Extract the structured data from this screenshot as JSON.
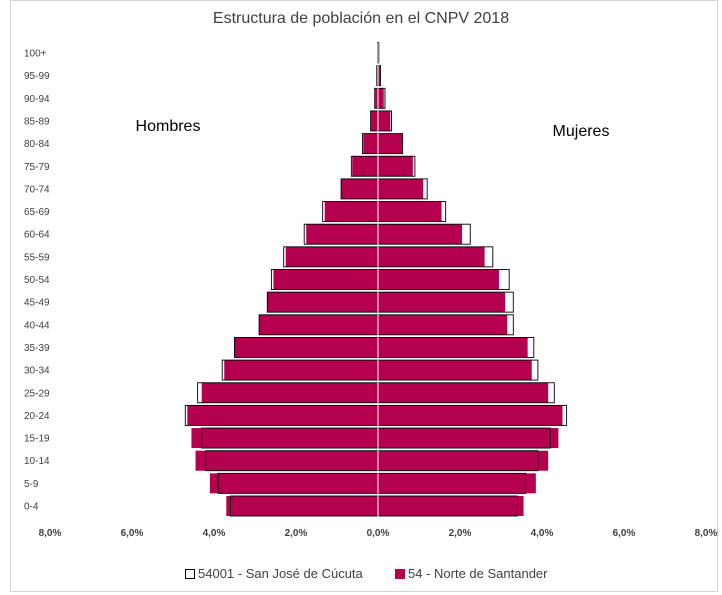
{
  "chart_data": {
    "type": "bar",
    "orientation": "horizontal",
    "title": "Estructura de población en el  CNPV 2018",
    "categories": [
      "0-4",
      "5-9",
      "10-14",
      "15-19",
      "20-24",
      "25-29",
      "30-34",
      "35-39",
      "40-44",
      "45-49",
      "50-54",
      "55-59",
      "60-64",
      "65-69",
      "70-74",
      "75-79",
      "80-84",
      "85-89",
      "90-94",
      "95-99",
      "100+"
    ],
    "side_labels": {
      "left": "Hombres",
      "right": "Mujeres"
    },
    "x_ticks": [
      "8,0%",
      "6,0%",
      "4,0%",
      "2,0%",
      "0,0%",
      "2,0%",
      "4,0%",
      "6,0%",
      "8,0%"
    ],
    "xlim": [
      -8,
      8
    ],
    "series": [
      {
        "name": "54001 - San José de Cúcuta",
        "color": "#ffffff",
        "hombres": [
          3.6,
          3.9,
          4.2,
          4.3,
          4.7,
          4.4,
          3.8,
          3.5,
          2.9,
          2.7,
          2.6,
          2.3,
          1.8,
          1.35,
          0.9,
          0.65,
          0.38,
          0.18,
          0.08,
          0.03,
          0.01
        ],
        "mujeres": [
          3.4,
          3.6,
          3.9,
          4.2,
          4.6,
          4.3,
          3.9,
          3.8,
          3.3,
          3.3,
          3.2,
          2.8,
          2.25,
          1.65,
          1.2,
          0.9,
          0.6,
          0.33,
          0.17,
          0.06,
          0.02
        ]
      },
      {
        "name": "54 - Norte de Santander",
        "color": "#b5004f",
        "hombres": [
          3.7,
          4.1,
          4.45,
          4.55,
          4.65,
          4.3,
          3.75,
          3.5,
          2.9,
          2.7,
          2.55,
          2.25,
          1.75,
          1.3,
          0.9,
          0.63,
          0.36,
          0.17,
          0.07,
          0.02,
          0.005
        ],
        "mujeres": [
          3.55,
          3.85,
          4.15,
          4.4,
          4.5,
          4.15,
          3.75,
          3.65,
          3.15,
          3.1,
          2.95,
          2.6,
          2.05,
          1.55,
          1.1,
          0.85,
          0.6,
          0.3,
          0.14,
          0.05,
          0.01
        ]
      }
    ]
  }
}
